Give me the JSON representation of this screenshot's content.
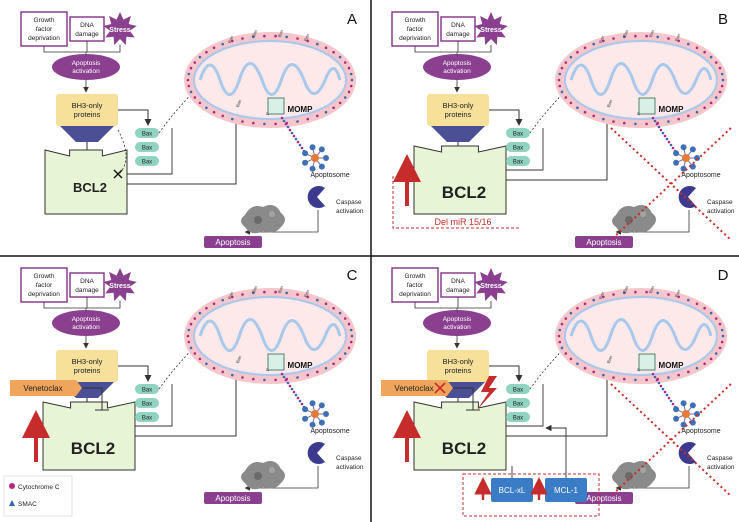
{
  "panels": [
    {
      "letter": "A",
      "inputs": {
        "growth": [
          "Growth",
          "factor",
          "deprivation"
        ],
        "dna": [
          "DNA",
          "damage"
        ],
        "stress": "Stress"
      },
      "apoptosis_activation": [
        "Apoptosis",
        "activation"
      ],
      "bh3": [
        "BH3-only",
        "proteins"
      ],
      "bax": [
        "Bax",
        "Bax",
        "Bax"
      ],
      "bcl2": "BCL2",
      "momp": "MOMP",
      "apoptosome": "Apoptosome",
      "caspase": [
        "Caspase",
        "activation"
      ],
      "apoptosis": "Apoptosis",
      "mito_labels": [
        "Bax",
        "Bax",
        "Bax",
        "Bax",
        "Bax",
        "Bax"
      ]
    },
    {
      "letter": "B",
      "inputs": {
        "growth": [
          "Growth",
          "factor",
          "deprivation"
        ],
        "dna": [
          "DNA",
          "damage"
        ],
        "stress": "Stress"
      },
      "apoptosis_activation": [
        "Apoptosis",
        "activation"
      ],
      "bh3": [
        "BH3-only",
        "proteins"
      ],
      "bax": [
        "Bax",
        "Bax",
        "Bax"
      ],
      "bcl2": "BCL2",
      "momp": "MOMP",
      "apoptosome": "Apoptosome",
      "caspase": [
        "Caspase",
        "activation"
      ],
      "apoptosis": "Apoptosis",
      "mito_labels": [
        "Bax",
        "Bax",
        "Bax",
        "Bax",
        "Bax",
        "Bax"
      ],
      "del_mir": "Del miR 15/16"
    },
    {
      "letter": "C",
      "inputs": {
        "growth": [
          "Growth",
          "factor",
          "deprivation"
        ],
        "dna": [
          "DNA",
          "damage"
        ],
        "stress": "Stress"
      },
      "apoptosis_activation": [
        "Apoptosis",
        "activation"
      ],
      "bh3": [
        "BH3-only",
        "proteins"
      ],
      "bax": [
        "Bax",
        "Bax",
        "Bax"
      ],
      "bcl2": "BCL2",
      "momp": "MOMP",
      "apoptosome": "Apoptosome",
      "caspase": [
        "Caspase",
        "activation"
      ],
      "apoptosis": "Apoptosis",
      "mito_labels": [
        "Bax",
        "Bax",
        "Bax",
        "Bax",
        "Bax",
        "Bax"
      ],
      "drug": "Venetoclax"
    },
    {
      "letter": "D",
      "inputs": {
        "growth": [
          "Growth",
          "factor",
          "deprivation"
        ],
        "dna": [
          "DNA",
          "damage"
        ],
        "stress": "Stress"
      },
      "apoptosis_activation": [
        "Apoptosis",
        "activation"
      ],
      "bh3": [
        "BH3-only",
        "proteins"
      ],
      "bax": [
        "Bax",
        "Bax",
        "Bax"
      ],
      "bcl2": "BCL2",
      "momp": "MOMP",
      "apoptosome": "Apoptosome",
      "caspase": [
        "Caspase",
        "activation"
      ],
      "apoptosis": "Apoptosis",
      "mito_labels": [
        "Bax",
        "Bax",
        "Bax",
        "Bax",
        "Bax",
        "Bax"
      ],
      "drug": "Venetoclax",
      "bclxl": "BCL-xL",
      "mcl1": "MCL-1"
    }
  ],
  "legend": {
    "cytochrome": "Cytochrome C",
    "smac": "SMAC"
  },
  "colors": {
    "purple": "#8a3f8f",
    "bh3_fill": "#f7e09a",
    "bcl2_fill": "#e8f4d6",
    "bax_fill": "#8fd3c0",
    "red": "#c72c2c",
    "venetoclax": "#f0a55c",
    "blue_box": "#3a7cc6",
    "mito_outer": "#f5c6cc",
    "mito_inner": "#a8c8ec",
    "cyto_dot": "#b3287e",
    "smac": "#3568b5"
  }
}
